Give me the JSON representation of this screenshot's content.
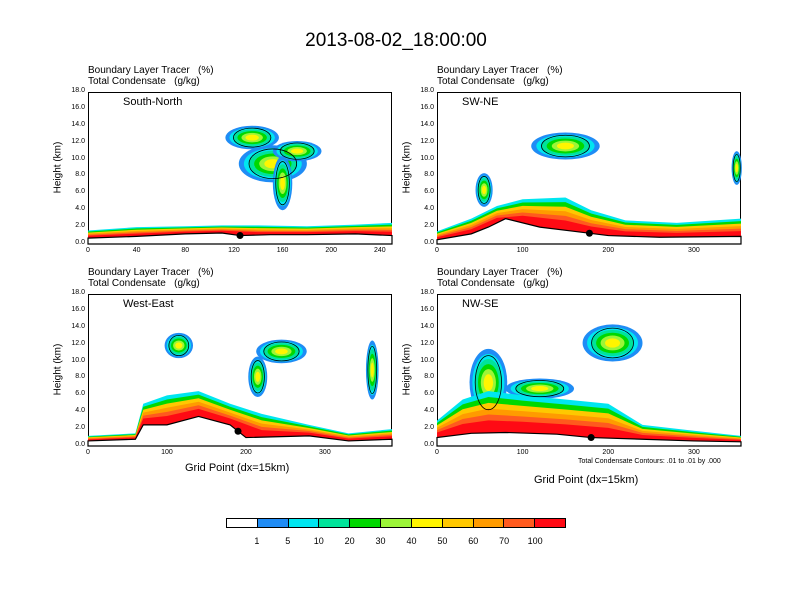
{
  "title": "2013-08-02_18:00:00",
  "header_line1": "Boundary Layer Tracer   (%)",
  "header_line2": "Total Condensate   (g/kg)",
  "y_axis_label": "Height (km)",
  "x_axis_label": "Grid Point (dx=15km)",
  "contour_note": "Total Condensate Contours: .01 to .01 by .000",
  "colorbar": {
    "colors": [
      "#ffffff",
      "#1f8cf5",
      "#00e6f0",
      "#00e39a",
      "#00d800",
      "#9cf538",
      "#fff500",
      "#ffc800",
      "#ff9b00",
      "#ff5a1e",
      "#ff0a14"
    ],
    "labels": [
      "1",
      "5",
      "10",
      "20",
      "30",
      "40",
      "50",
      "60",
      "70",
      "100"
    ]
  },
  "chart_data": [
    {
      "type": "heatmap",
      "panel_label": "South-North",
      "title_lines": [
        "Boundary Layer Tracer   (%)",
        "Total Condensate   (g/kg)"
      ],
      "ylabel": "Height (km)",
      "xlabel": "",
      "xlim": [
        0,
        250
      ],
      "ylim": [
        0,
        18
      ],
      "xticks": [
        "0",
        "40",
        "80",
        "120",
        "160",
        "200",
        "240"
      ],
      "yticks": [
        "0.0",
        "2.0",
        "4.0",
        "6.0",
        "8.0",
        "10.0",
        "12.0",
        "14.0",
        "16.0",
        "18.0"
      ],
      "marker_x": 125,
      "terrain": [
        [
          0,
          0.7
        ],
        [
          40,
          0.9
        ],
        [
          80,
          1.2
        ],
        [
          110,
          1.3
        ],
        [
          125,
          1.0
        ],
        [
          150,
          1.1
        ],
        [
          180,
          1.1
        ],
        [
          220,
          1.2
        ],
        [
          250,
          1.0
        ]
      ],
      "surface_top": [
        [
          0,
          1.6
        ],
        [
          40,
          2.0
        ],
        [
          80,
          2.1
        ],
        [
          110,
          2.2
        ],
        [
          140,
          2.2
        ],
        [
          180,
          2.1
        ],
        [
          220,
          2.3
        ],
        [
          250,
          2.5
        ]
      ],
      "clouds": [
        {
          "cx": 152,
          "cy": 9.5,
          "rx": 28,
          "ry": 2.2
        },
        {
          "cx": 135,
          "cy": 12.6,
          "rx": 22,
          "ry": 1.4
        },
        {
          "cx": 172,
          "cy": 11.0,
          "rx": 20,
          "ry": 1.2
        },
        {
          "cx": 160,
          "cy": 7.2,
          "rx": 8,
          "ry": 3.2
        }
      ]
    },
    {
      "type": "heatmap",
      "panel_label": "SW-NE",
      "title_lines": [
        "Boundary Layer Tracer   (%)",
        "Total Condensate   (g/kg)"
      ],
      "ylabel": "Height (km)",
      "xlabel": "",
      "xlim": [
        0,
        355
      ],
      "ylim": [
        0,
        18
      ],
      "xticks": [
        "0",
        "100",
        "200",
        "300"
      ],
      "yticks": [
        "0.0",
        "2.0",
        "4.0",
        "6.0",
        "8.0",
        "10.0",
        "12.0",
        "14.0",
        "16.0",
        "18.0"
      ],
      "marker_x": 178,
      "terrain": [
        [
          0,
          0.5
        ],
        [
          40,
          1.2
        ],
        [
          60,
          2.0
        ],
        [
          80,
          3.0
        ],
        [
          120,
          2.0
        ],
        [
          160,
          1.5
        ],
        [
          200,
          1.0
        ],
        [
          260,
          0.8
        ],
        [
          355,
          0.9
        ]
      ],
      "surface_top": [
        [
          0,
          1.5
        ],
        [
          40,
          3.0
        ],
        [
          70,
          4.5
        ],
        [
          100,
          5.3
        ],
        [
          150,
          5.5
        ],
        [
          180,
          4.0
        ],
        [
          220,
          2.8
        ],
        [
          280,
          2.5
        ],
        [
          355,
          3.0
        ]
      ],
      "clouds": [
        {
          "cx": 150,
          "cy": 11.6,
          "rx": 40,
          "ry": 1.6
        },
        {
          "cx": 55,
          "cy": 6.4,
          "rx": 10,
          "ry": 2.0
        },
        {
          "cx": 350,
          "cy": 9.0,
          "rx": 6,
          "ry": 2.0
        }
      ]
    },
    {
      "type": "heatmap",
      "panel_label": "West-East",
      "title_lines": [
        "Boundary Layer Tracer   (%)",
        "Total Condensate   (g/kg)"
      ],
      "ylabel": "Height (km)",
      "xlabel": "Grid Point (dx=15km)",
      "xlim": [
        0,
        385
      ],
      "ylim": [
        0,
        18
      ],
      "xticks": [
        "0",
        "100",
        "200",
        "300"
      ],
      "yticks": [
        "0.0",
        "2.0",
        "4.0",
        "6.0",
        "8.0",
        "10.0",
        "12.0",
        "14.0",
        "16.0",
        "18.0"
      ],
      "marker_x": 190,
      "terrain": [
        [
          0,
          0.6
        ],
        [
          60,
          0.8
        ],
        [
          70,
          2.5
        ],
        [
          100,
          2.5
        ],
        [
          140,
          3.5
        ],
        [
          180,
          2.5
        ],
        [
          200,
          1.0
        ],
        [
          280,
          1.2
        ],
        [
          330,
          0.6
        ],
        [
          385,
          0.8
        ]
      ],
      "surface_top": [
        [
          0,
          1.2
        ],
        [
          60,
          1.5
        ],
        [
          70,
          5.0
        ],
        [
          100,
          6.0
        ],
        [
          140,
          6.5
        ],
        [
          180,
          5.0
        ],
        [
          220,
          3.8
        ],
        [
          280,
          2.5
        ],
        [
          330,
          1.5
        ],
        [
          385,
          2.0
        ]
      ],
      "clouds": [
        {
          "cx": 115,
          "cy": 11.9,
          "rx": 18,
          "ry": 1.5
        },
        {
          "cx": 245,
          "cy": 11.2,
          "rx": 32,
          "ry": 1.4
        },
        {
          "cx": 215,
          "cy": 8.2,
          "rx": 12,
          "ry": 2.4
        },
        {
          "cx": 360,
          "cy": 9.0,
          "rx": 8,
          "ry": 3.5
        }
      ]
    },
    {
      "type": "heatmap",
      "panel_label": "NW-SE",
      "title_lines": [
        "Boundary Layer Tracer   (%)",
        "Total Condensate   (g/kg)"
      ],
      "ylabel": "Height (km)",
      "xlabel": "Grid Point (dx=15km)",
      "xlim": [
        0,
        355
      ],
      "ylim": [
        0,
        18
      ],
      "xticks": [
        "0",
        "100",
        "200",
        "300"
      ],
      "yticks": [
        "0.0",
        "2.0",
        "4.0",
        "6.0",
        "8.0",
        "10.0",
        "12.0",
        "14.0",
        "16.0",
        "18.0"
      ],
      "marker_x": 180,
      "terrain": [
        [
          0,
          1.0
        ],
        [
          40,
          1.5
        ],
        [
          80,
          1.6
        ],
        [
          140,
          1.4
        ],
        [
          180,
          1.0
        ],
        [
          240,
          0.8
        ],
        [
          300,
          0.6
        ],
        [
          355,
          0.5
        ]
      ],
      "surface_top": [
        [
          0,
          3.0
        ],
        [
          30,
          5.5
        ],
        [
          60,
          6.5
        ],
        [
          100,
          6.0
        ],
        [
          150,
          5.5
        ],
        [
          200,
          5.0
        ],
        [
          240,
          2.5
        ],
        [
          300,
          1.8
        ],
        [
          355,
          1.2
        ]
      ],
      "clouds": [
        {
          "cx": 60,
          "cy": 7.5,
          "rx": 22,
          "ry": 4.0
        },
        {
          "cx": 205,
          "cy": 12.2,
          "rx": 35,
          "ry": 2.2
        },
        {
          "cx": 120,
          "cy": 6.8,
          "rx": 40,
          "ry": 1.2
        }
      ]
    }
  ]
}
